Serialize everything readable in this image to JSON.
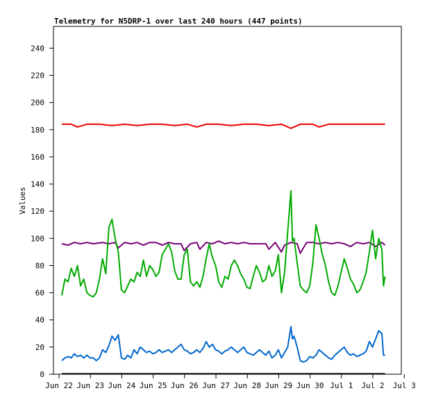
{
  "chart_data": {
    "type": "line",
    "title": "Telemetry for N5DRP-1 over last 240 hours (447 points)",
    "xlabel": "",
    "ylabel": "Values",
    "ylim": [
      0,
      255
    ],
    "xlim": [
      0,
      11
    ],
    "grid": false,
    "legend": "none",
    "x_tick_labels": [
      "Jun 22",
      "Jun 23",
      "Jun 24",
      "Jun 25",
      "Jun 26",
      "Jun 27",
      "Jun 28",
      "Jun 29",
      "Jun 30",
      "Jul 1",
      "Jul 2",
      "Jul 3"
    ],
    "y_ticks": [
      0,
      20,
      40,
      60,
      80,
      100,
      120,
      140,
      160,
      180,
      200,
      220,
      240
    ],
    "x_unit": "days after Jun 22",
    "series": [
      {
        "color": "#ee0000",
        "points": [
          [
            0.0,
            184
          ],
          [
            0.3,
            184
          ],
          [
            0.5,
            182
          ],
          [
            0.8,
            184
          ],
          [
            1.2,
            184
          ],
          [
            1.6,
            183
          ],
          [
            2.0,
            184
          ],
          [
            2.4,
            183
          ],
          [
            2.8,
            184
          ],
          [
            3.2,
            184
          ],
          [
            3.6,
            183
          ],
          [
            4.0,
            184
          ],
          [
            4.3,
            182
          ],
          [
            4.6,
            184
          ],
          [
            5.0,
            184
          ],
          [
            5.4,
            183
          ],
          [
            5.8,
            184
          ],
          [
            6.2,
            184
          ],
          [
            6.6,
            183
          ],
          [
            7.0,
            184
          ],
          [
            7.3,
            181
          ],
          [
            7.6,
            184
          ],
          [
            8.0,
            184
          ],
          [
            8.2,
            182
          ],
          [
            8.5,
            184
          ],
          [
            9.0,
            184
          ],
          [
            9.5,
            184
          ],
          [
            10.0,
            184
          ],
          [
            10.3,
            184
          ]
        ]
      },
      {
        "color": "#770077",
        "points": [
          [
            0.0,
            96
          ],
          [
            0.2,
            95
          ],
          [
            0.4,
            97
          ],
          [
            0.6,
            96
          ],
          [
            0.8,
            97
          ],
          [
            1.0,
            96
          ],
          [
            1.3,
            97
          ],
          [
            1.5,
            96
          ],
          [
            1.7,
            97
          ],
          [
            1.8,
            93
          ],
          [
            2.0,
            97
          ],
          [
            2.2,
            96
          ],
          [
            2.4,
            97
          ],
          [
            2.6,
            95
          ],
          [
            2.8,
            97
          ],
          [
            3.0,
            97
          ],
          [
            3.2,
            95
          ],
          [
            3.4,
            97
          ],
          [
            3.6,
            96
          ],
          [
            3.8,
            96
          ],
          [
            3.9,
            91
          ],
          [
            4.1,
            96
          ],
          [
            4.3,
            97
          ],
          [
            4.4,
            92
          ],
          [
            4.6,
            97
          ],
          [
            4.8,
            96
          ],
          [
            5.0,
            98
          ],
          [
            5.2,
            96
          ],
          [
            5.4,
            97
          ],
          [
            5.6,
            96
          ],
          [
            5.8,
            97
          ],
          [
            6.0,
            96
          ],
          [
            6.3,
            96
          ],
          [
            6.5,
            96
          ],
          [
            6.6,
            92
          ],
          [
            6.8,
            97
          ],
          [
            7.0,
            90
          ],
          [
            7.1,
            95
          ],
          [
            7.3,
            97
          ],
          [
            7.5,
            96
          ],
          [
            7.6,
            89
          ],
          [
            7.8,
            97
          ],
          [
            8.0,
            97
          ],
          [
            8.2,
            96
          ],
          [
            8.4,
            97
          ],
          [
            8.6,
            96
          ],
          [
            8.8,
            97
          ],
          [
            9.0,
            96
          ],
          [
            9.2,
            94
          ],
          [
            9.4,
            97
          ],
          [
            9.6,
            96
          ],
          [
            9.8,
            97
          ],
          [
            10.0,
            94
          ],
          [
            10.2,
            97
          ],
          [
            10.3,
            95
          ]
        ]
      },
      {
        "color": "#00aa00",
        "points": [
          [
            0.0,
            58
          ],
          [
            0.1,
            70
          ],
          [
            0.2,
            68
          ],
          [
            0.3,
            78
          ],
          [
            0.4,
            72
          ],
          [
            0.5,
            80
          ],
          [
            0.6,
            65
          ],
          [
            0.7,
            70
          ],
          [
            0.8,
            60
          ],
          [
            0.9,
            58
          ],
          [
            1.0,
            57
          ],
          [
            1.1,
            60
          ],
          [
            1.2,
            70
          ],
          [
            1.3,
            85
          ],
          [
            1.4,
            74
          ],
          [
            1.5,
            108
          ],
          [
            1.6,
            114
          ],
          [
            1.7,
            100
          ],
          [
            1.8,
            90
          ],
          [
            1.9,
            62
          ],
          [
            2.0,
            60
          ],
          [
            2.1,
            65
          ],
          [
            2.2,
            70
          ],
          [
            2.3,
            68
          ],
          [
            2.4,
            75
          ],
          [
            2.5,
            72
          ],
          [
            2.6,
            84
          ],
          [
            2.7,
            72
          ],
          [
            2.8,
            80
          ],
          [
            2.9,
            77
          ],
          [
            3.0,
            72
          ],
          [
            3.1,
            75
          ],
          [
            3.2,
            88
          ],
          [
            3.3,
            92
          ],
          [
            3.4,
            96
          ],
          [
            3.5,
            90
          ],
          [
            3.6,
            76
          ],
          [
            3.7,
            70
          ],
          [
            3.8,
            70
          ],
          [
            3.9,
            88
          ],
          [
            4.0,
            92
          ],
          [
            4.1,
            68
          ],
          [
            4.2,
            65
          ],
          [
            4.3,
            68
          ],
          [
            4.4,
            64
          ],
          [
            4.5,
            72
          ],
          [
            4.6,
            85
          ],
          [
            4.7,
            96
          ],
          [
            4.8,
            86
          ],
          [
            4.9,
            80
          ],
          [
            5.0,
            68
          ],
          [
            5.1,
            64
          ],
          [
            5.2,
            72
          ],
          [
            5.3,
            70
          ],
          [
            5.4,
            80
          ],
          [
            5.5,
            84
          ],
          [
            5.6,
            80
          ],
          [
            5.7,
            74
          ],
          [
            5.8,
            70
          ],
          [
            5.9,
            64
          ],
          [
            6.0,
            63
          ],
          [
            6.1,
            72
          ],
          [
            6.2,
            80
          ],
          [
            6.3,
            75
          ],
          [
            6.4,
            68
          ],
          [
            6.5,
            70
          ],
          [
            6.6,
            80
          ],
          [
            6.7,
            72
          ],
          [
            6.8,
            76
          ],
          [
            6.9,
            88
          ],
          [
            7.0,
            60
          ],
          [
            7.1,
            75
          ],
          [
            7.2,
            105
          ],
          [
            7.3,
            135
          ],
          [
            7.35,
            98
          ],
          [
            7.4,
            100
          ],
          [
            7.5,
            82
          ],
          [
            7.6,
            65
          ],
          [
            7.7,
            62
          ],
          [
            7.8,
            60
          ],
          [
            7.9,
            65
          ],
          [
            8.0,
            82
          ],
          [
            8.1,
            110
          ],
          [
            8.2,
            100
          ],
          [
            8.3,
            88
          ],
          [
            8.4,
            80
          ],
          [
            8.5,
            68
          ],
          [
            8.6,
            60
          ],
          [
            8.7,
            58
          ],
          [
            8.8,
            65
          ],
          [
            8.9,
            75
          ],
          [
            9.0,
            85
          ],
          [
            9.1,
            78
          ],
          [
            9.2,
            70
          ],
          [
            9.3,
            66
          ],
          [
            9.4,
            60
          ],
          [
            9.5,
            62
          ],
          [
            9.6,
            68
          ],
          [
            9.7,
            75
          ],
          [
            9.8,
            90
          ],
          [
            9.9,
            106
          ],
          [
            10.0,
            85
          ],
          [
            10.1,
            100
          ],
          [
            10.2,
            92
          ],
          [
            10.25,
            65
          ],
          [
            10.3,
            72
          ]
        ]
      },
      {
        "color": "#0066cc",
        "points": [
          [
            0.0,
            10
          ],
          [
            0.1,
            12
          ],
          [
            0.2,
            13
          ],
          [
            0.3,
            12
          ],
          [
            0.4,
            15
          ],
          [
            0.5,
            13
          ],
          [
            0.6,
            14
          ],
          [
            0.7,
            12
          ],
          [
            0.8,
            14
          ],
          [
            0.9,
            12
          ],
          [
            1.0,
            12
          ],
          [
            1.1,
            10
          ],
          [
            1.2,
            12
          ],
          [
            1.3,
            18
          ],
          [
            1.4,
            16
          ],
          [
            1.5,
            21
          ],
          [
            1.6,
            28
          ],
          [
            1.7,
            25
          ],
          [
            1.8,
            29
          ],
          [
            1.9,
            12
          ],
          [
            2.0,
            11
          ],
          [
            2.1,
            14
          ],
          [
            2.2,
            12
          ],
          [
            2.3,
            18
          ],
          [
            2.4,
            15
          ],
          [
            2.5,
            20
          ],
          [
            2.6,
            18
          ],
          [
            2.7,
            16
          ],
          [
            2.8,
            17
          ],
          [
            2.9,
            15
          ],
          [
            3.0,
            16
          ],
          [
            3.1,
            18
          ],
          [
            3.2,
            16
          ],
          [
            3.3,
            17
          ],
          [
            3.4,
            18
          ],
          [
            3.5,
            16
          ],
          [
            3.6,
            18
          ],
          [
            3.7,
            20
          ],
          [
            3.8,
            22
          ],
          [
            3.9,
            18
          ],
          [
            4.0,
            17
          ],
          [
            4.1,
            15
          ],
          [
            4.2,
            16
          ],
          [
            4.3,
            18
          ],
          [
            4.4,
            16
          ],
          [
            4.5,
            19
          ],
          [
            4.6,
            24
          ],
          [
            4.7,
            20
          ],
          [
            4.8,
            22
          ],
          [
            4.9,
            18
          ],
          [
            5.0,
            17
          ],
          [
            5.1,
            15
          ],
          [
            5.2,
            17
          ],
          [
            5.3,
            18
          ],
          [
            5.4,
            20
          ],
          [
            5.5,
            18
          ],
          [
            5.6,
            16
          ],
          [
            5.7,
            18
          ],
          [
            5.8,
            20
          ],
          [
            5.9,
            16
          ],
          [
            6.0,
            15
          ],
          [
            6.1,
            14
          ],
          [
            6.2,
            16
          ],
          [
            6.3,
            18
          ],
          [
            6.4,
            16
          ],
          [
            6.5,
            14
          ],
          [
            6.6,
            17
          ],
          [
            6.7,
            12
          ],
          [
            6.8,
            14
          ],
          [
            6.9,
            18
          ],
          [
            7.0,
            12
          ],
          [
            7.1,
            16
          ],
          [
            7.2,
            20
          ],
          [
            7.3,
            35
          ],
          [
            7.35,
            26
          ],
          [
            7.4,
            28
          ],
          [
            7.5,
            20
          ],
          [
            7.6,
            10
          ],
          [
            7.7,
            9
          ],
          [
            7.8,
            10
          ],
          [
            7.9,
            13
          ],
          [
            8.0,
            12
          ],
          [
            8.1,
            14
          ],
          [
            8.2,
            18
          ],
          [
            8.3,
            16
          ],
          [
            8.4,
            14
          ],
          [
            8.5,
            12
          ],
          [
            8.6,
            11
          ],
          [
            8.7,
            14
          ],
          [
            8.8,
            16
          ],
          [
            8.9,
            18
          ],
          [
            9.0,
            20
          ],
          [
            9.1,
            16
          ],
          [
            9.2,
            14
          ],
          [
            9.3,
            15
          ],
          [
            9.4,
            13
          ],
          [
            9.5,
            14
          ],
          [
            9.6,
            15
          ],
          [
            9.7,
            17
          ],
          [
            9.8,
            24
          ],
          [
            9.9,
            20
          ],
          [
            10.0,
            26
          ],
          [
            10.1,
            32
          ],
          [
            10.2,
            30
          ],
          [
            10.25,
            14
          ],
          [
            10.3,
            14
          ]
        ]
      },
      {
        "color": "#000000",
        "points": [
          [
            0.0,
            0.3
          ],
          [
            10.3,
            0.3
          ]
        ]
      }
    ]
  }
}
